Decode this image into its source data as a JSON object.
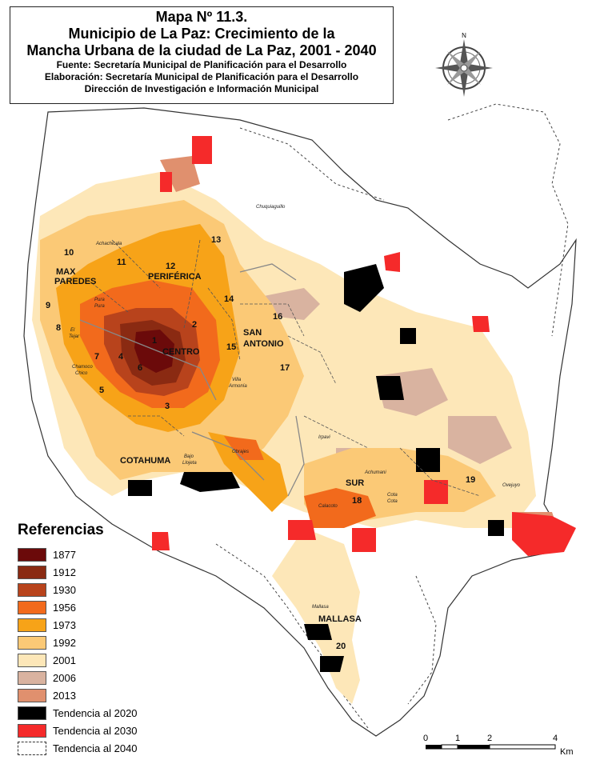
{
  "title": {
    "line1": "Mapa Nº 11.3.",
    "line2": "Municipio de La Paz: Crecimiento de la",
    "line3": "Mancha Urbana de la ciudad de La Paz, 2001 - 2040",
    "source": "Fuente: Secretaría Municipal de Planificación para el Desarrollo",
    "elaboration": "Elaboración: Secretaría Municipal de Planificación para el Desarrollo",
    "direction": "Dirección de Investigación e Información Municipal"
  },
  "compass": {
    "north_label": "N",
    "icon": "compass-rose-icon"
  },
  "legend": {
    "title": "Referencias",
    "items": [
      {
        "label": "1877",
        "color": "#6b0a0a"
      },
      {
        "label": "1912",
        "color": "#8a2a12"
      },
      {
        "label": "1930",
        "color": "#b8431c"
      },
      {
        "label": "1956",
        "color": "#f26a1c"
      },
      {
        "label": "1973",
        "color": "#f7a318"
      },
      {
        "label": "1992",
        "color": "#fbc976"
      },
      {
        "label": "2001",
        "color": "#fde7b8"
      },
      {
        "label": "2006",
        "color": "#d9b3a0"
      },
      {
        "label": "2013",
        "color": "#e0906e"
      },
      {
        "label": "Tendencia al 2020",
        "color": "#000000"
      },
      {
        "label": "Tendencia al 2030",
        "color": "#f52a2a"
      },
      {
        "label": "Tendencia al 2040",
        "color": "#ffffff",
        "dashed": true
      }
    ]
  },
  "macrodistricts": {
    "max_paredes_1": "MAX",
    "max_paredes_2": "PAREDES",
    "periferica": "PERIFÉRICA",
    "centro": "CENTRO",
    "san_antonio_1": "SAN",
    "san_antonio_2": "ANTONIO",
    "cotahuma": "COTAHUMA",
    "sur": "SUR",
    "mallasa": "MALLASA"
  },
  "district_numbers": [
    "1",
    "2",
    "3",
    "4",
    "5",
    "6",
    "7",
    "8",
    "9",
    "10",
    "11",
    "12",
    "13",
    "14",
    "15",
    "16",
    "17",
    "18",
    "19",
    "20"
  ],
  "places": {
    "chuquiaguillo": "Chuquiaguillo",
    "achachicala": "Achachicala",
    "pura_pura_1": "Pura",
    "pura_pura_2": "Pura",
    "el_tejar_1": "El",
    "el_tejar_2": "Tejar",
    "chamoco_chico_1": "Chamoco",
    "chamoco_chico_2": "Chico",
    "villa_armonia_1": "Villa",
    "villa_armonia_2": "Armonía",
    "irpavi": "Irpavi",
    "obrajes": "Obrajes",
    "bajo_llojeta_1": "Bajo",
    "bajo_llojeta_2": "Llojeta",
    "achumani": "Achumani",
    "calacoto": "Calacoto",
    "cota_cota_1": "Cota",
    "cota_cota_2": "Cota",
    "ovejuyo": "Ovejuyo",
    "mallasa": "Mallasa"
  },
  "scale": {
    "ticks": [
      "0",
      "1",
      "2",
      "4"
    ],
    "unit": "Km"
  }
}
